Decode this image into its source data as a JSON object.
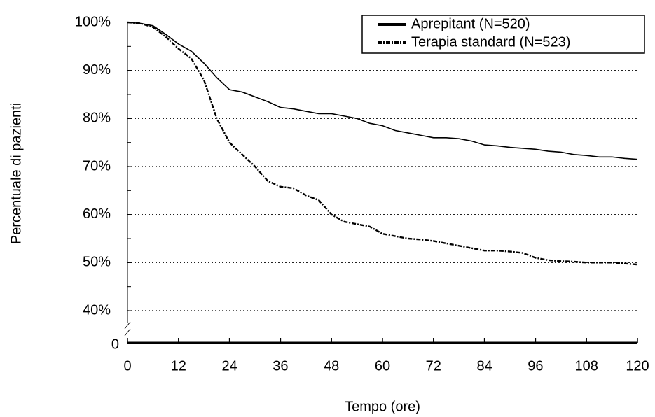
{
  "chart_data": {
    "type": "line",
    "x_label": "Tempo (ore)",
    "y_label": "Percentuale di pazienti",
    "x": [
      0,
      3,
      6,
      9,
      12,
      15,
      18,
      21,
      24,
      27,
      30,
      33,
      36,
      39,
      42,
      45,
      48,
      51,
      54,
      57,
      60,
      63,
      66,
      69,
      72,
      75,
      78,
      81,
      84,
      87,
      90,
      93,
      96,
      99,
      102,
      105,
      108,
      111,
      114,
      117,
      120
    ],
    "series": [
      {
        "name": "Aprepitant (N=520)",
        "color": "#000000",
        "dash": "solid",
        "values": [
          100,
          99.8,
          99.3,
          97.5,
          95.5,
          94,
          91.5,
          88.5,
          86,
          85.5,
          84.5,
          83.5,
          82.3,
          82,
          81.5,
          81,
          81,
          80.5,
          80,
          79,
          78.5,
          77.5,
          77,
          76.5,
          76,
          76,
          75.8,
          75.3,
          74.5,
          74.3,
          74,
          73.8,
          73.6,
          73.2,
          73,
          72.5,
          72.3,
          72,
          72,
          71.7,
          71.5
        ]
      },
      {
        "name": "Terapia standard (N=523)",
        "color": "#000000",
        "dash": "dashdot",
        "values": [
          100,
          99.8,
          99,
          97,
          94.5,
          92.5,
          88,
          80,
          75,
          72.5,
          70,
          67,
          65.8,
          65.5,
          64,
          63,
          60,
          58.5,
          58,
          57.5,
          56,
          55.5,
          55,
          54.8,
          54.5,
          54,
          53.5,
          53,
          52.5,
          52.5,
          52.3,
          52,
          51,
          50.5,
          50.3,
          50.2,
          50,
          50,
          50,
          49.8,
          49.6
        ]
      }
    ],
    "xlim": [
      0,
      120
    ],
    "xticks": [
      0,
      12,
      24,
      36,
      48,
      60,
      72,
      84,
      96,
      108,
      120
    ],
    "ylim": [
      40,
      100
    ],
    "yticks": [
      {
        "value": 0,
        "label": "0"
      },
      {
        "value": 40,
        "label": "40%"
      },
      {
        "value": 50,
        "label": "50%"
      },
      {
        "value": 60,
        "label": "60%"
      },
      {
        "value": 70,
        "label": "70%"
      },
      {
        "value": 80,
        "label": "80%"
      },
      {
        "value": 90,
        "label": "90%"
      },
      {
        "value": 100,
        "label": "100%"
      }
    ],
    "axis_break": true,
    "grid": true,
    "legend": "upper right"
  }
}
